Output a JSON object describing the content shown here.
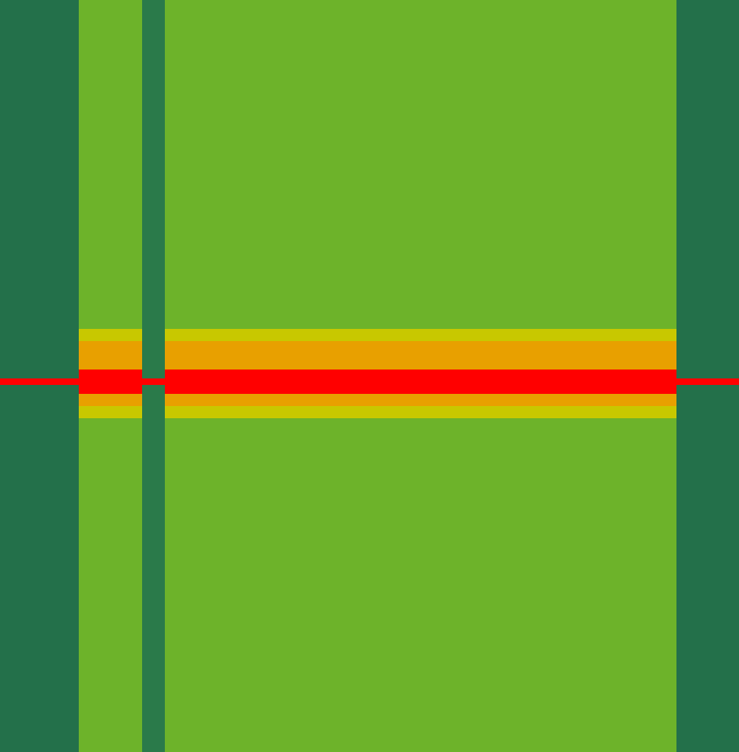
{
  "chart_data": {
    "type": "heatmap",
    "tick_labels": false,
    "x_edges": [
      0,
      97,
      175,
      203,
      833,
      910
    ],
    "y_edges": [
      0,
      405,
      420,
      455,
      466,
      474,
      485,
      500,
      515,
      926
    ],
    "cells": [
      [
        2,
        4,
        2.5,
        4,
        2
      ],
      [
        2,
        6,
        2.5,
        6,
        2
      ],
      [
        2,
        8,
        2.5,
        8,
        2
      ],
      [
        2,
        10,
        2.5,
        10,
        2
      ],
      [
        10,
        10,
        10,
        10,
        10
      ],
      [
        2,
        10,
        2.5,
        10,
        2
      ],
      [
        2,
        8,
        2.5,
        8,
        2
      ],
      [
        2,
        6,
        2.5,
        6,
        2
      ],
      [
        2,
        4,
        2.5,
        4,
        2
      ]
    ],
    "color_range": [
      0,
      10
    ]
  }
}
